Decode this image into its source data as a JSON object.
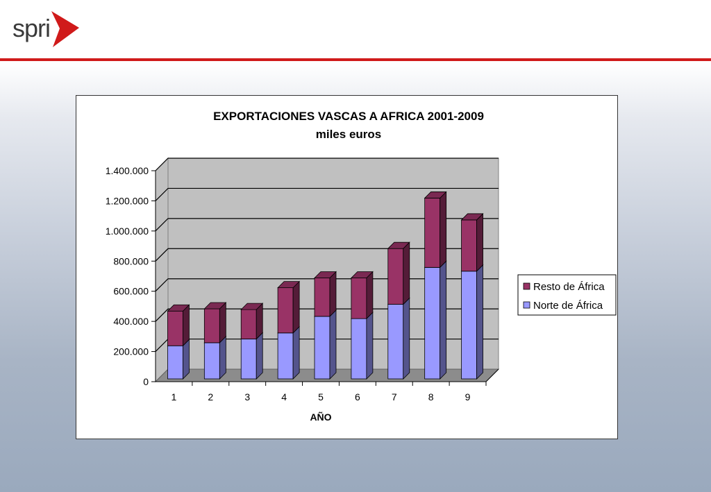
{
  "header": {
    "logo_text": "spri",
    "logo_icon": "red-arrow-icon",
    "accent_color": "#d01a1a"
  },
  "chart_data": {
    "type": "bar",
    "stacked": true,
    "three_d": true,
    "title": "EXPORTACIONES VASCAS A AFRICA 2001-2009",
    "subtitle": "miles euros",
    "xlabel": "AÑO",
    "ylabel": "",
    "categories": [
      "1",
      "2",
      "3",
      "4",
      "5",
      "6",
      "7",
      "8",
      "9"
    ],
    "ylim": [
      0,
      1400000
    ],
    "yticks": [
      0,
      200000,
      400000,
      600000,
      800000,
      1000000,
      1200000,
      1400000
    ],
    "ytick_labels": [
      "0",
      "200.000",
      "400.000",
      "600.000",
      "800.000",
      "1.000.000",
      "1.200.000",
      "1.400.000"
    ],
    "grid": true,
    "legend_position": "right",
    "series": [
      {
        "name": "Norte de África",
        "color": "#9999ff",
        "values": [
          220000,
          240000,
          265000,
          305000,
          415000,
          400000,
          495000,
          740000,
          715000
        ]
      },
      {
        "name": "Resto de África",
        "color": "#993366",
        "values": [
          230000,
          225000,
          195000,
          300000,
          255000,
          270000,
          370000,
          460000,
          340000
        ]
      }
    ],
    "legend_order": [
      "Resto de África",
      "Norte de África"
    ]
  }
}
